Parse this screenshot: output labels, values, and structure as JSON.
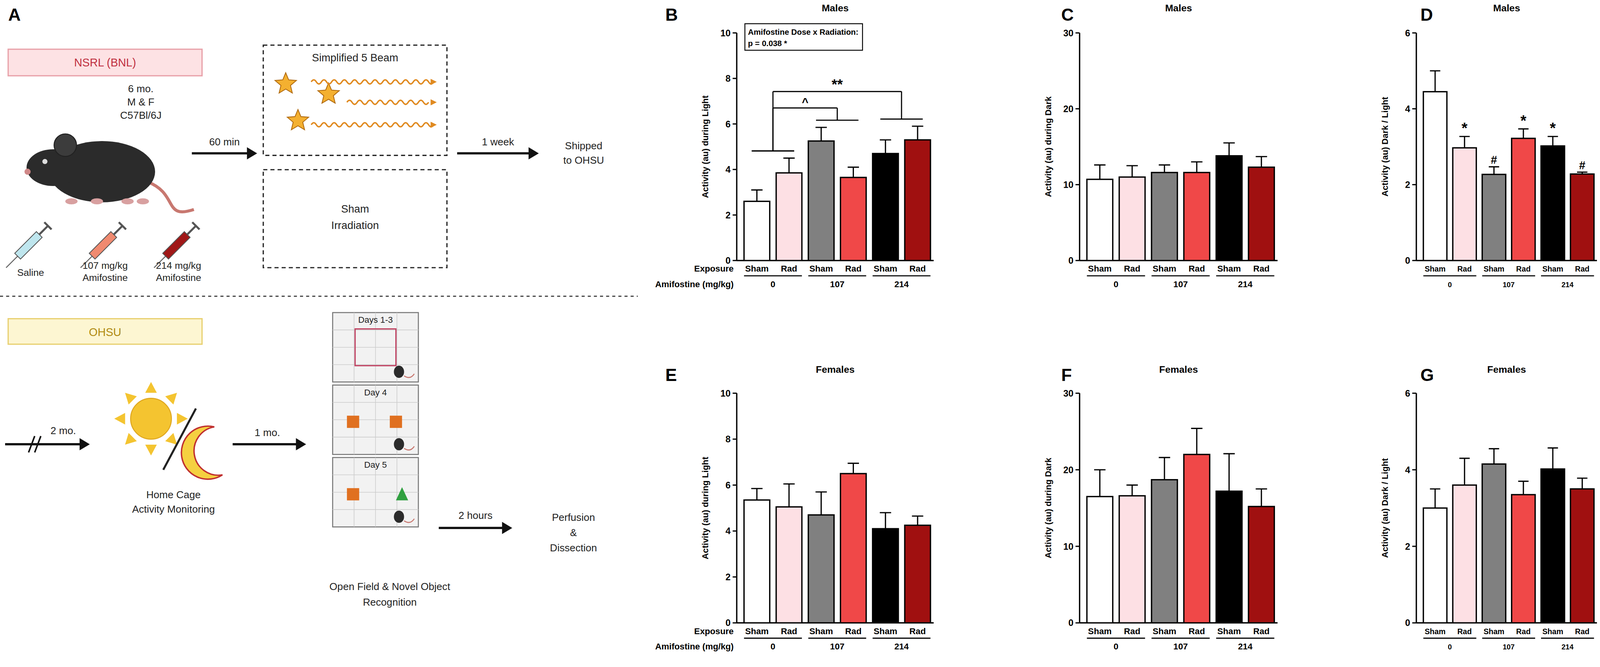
{
  "panel_labels": [
    "A",
    "B",
    "C",
    "D",
    "E",
    "F",
    "G"
  ],
  "diagram": {
    "site1": "NSRL (BNL)",
    "animal": [
      "6 mo.",
      "M & F",
      "C57Bl/6J"
    ],
    "injections": [
      [
        "Saline"
      ],
      [
        "107 mg/kg",
        "Amifostine"
      ],
      [
        "214 mg/kg",
        "Amifostine"
      ]
    ],
    "step1": "60 min",
    "exposures": [
      [
        "Simplified 5 Beam"
      ],
      [
        "Sham",
        "Irradiation"
      ]
    ],
    "step2": "1 week",
    "ship": [
      "Shipped",
      "to OHSU"
    ],
    "site2": "OHSU",
    "step3": "2 mo.",
    "monitoring": [
      "Home Cage",
      "Activity Monitoring"
    ],
    "step4": "1 mo.",
    "days": [
      "Days 1-3",
      "Day 4",
      "Day 5"
    ],
    "tests": [
      "Open Field & Novel Object",
      "Recognition"
    ],
    "step5": "2 hours",
    "end": [
      "Perfusion",
      "&",
      "Dissection"
    ]
  },
  "chart_data": [
    {
      "type": "bar",
      "title": "Males",
      "y_label": "Activity (au) during Light",
      "x_label": "Exposure",
      "group_title": "Amifostine (mg/kg)",
      "categories": [
        "Sham",
        "Rad",
        "Sham",
        "Rad",
        "Sham",
        "Rad"
      ],
      "groups": [
        "0",
        "107",
        "214"
      ],
      "values": [
        2.6,
        3.85,
        5.25,
        3.65,
        4.7,
        5.3
      ],
      "errors": [
        0.5,
        0.65,
        0.6,
        0.45,
        0.6,
        0.6
      ],
      "colors": [
        "#ffffff",
        "#fde0e4",
        "#808080",
        "#f04848",
        "#000000",
        "#a01010"
      ],
      "ylim": [
        0,
        10
      ],
      "yticks": [
        0,
        2,
        4,
        6,
        8,
        10
      ],
      "interaction_note": [
        "Amifostine Dose x Radiation:",
        "p = 0.038 *"
      ],
      "comparisons": [
        {
          "text": "^",
          "groups": [
            "0",
            "107"
          ]
        },
        {
          "text": "**",
          "groups": [
            "0",
            "214"
          ]
        }
      ]
    },
    {
      "type": "bar",
      "title": "Males",
      "y_label": "Activity (au) during Dark",
      "categories": [
        "Sham",
        "Rad",
        "Sham",
        "Rad",
        "Sham",
        "Rad"
      ],
      "groups": [
        "0",
        "107",
        "214"
      ],
      "values": [
        10.7,
        11.0,
        11.6,
        11.6,
        13.8,
        12.3
      ],
      "errors": [
        1.9,
        1.5,
        1.0,
        1.4,
        1.7,
        1.4
      ],
      "colors": [
        "#ffffff",
        "#fde0e4",
        "#808080",
        "#f04848",
        "#000000",
        "#a01010"
      ],
      "ylim": [
        0,
        30
      ],
      "yticks": [
        0,
        10,
        20,
        30
      ]
    },
    {
      "type": "bar",
      "title": "Males",
      "y_label": "Activity (au) Dark / Light",
      "categories": [
        "Sham",
        "Rad",
        "Sham",
        "Rad",
        "Sham",
        "Rad"
      ],
      "groups": [
        "0",
        "107",
        "214"
      ],
      "values": [
        4.45,
        2.97,
        2.27,
        3.22,
        3.02,
        2.28
      ],
      "errors": [
        0.55,
        0.3,
        0.2,
        0.25,
        0.25,
        0.05
      ],
      "colors": [
        "#ffffff",
        "#fde0e4",
        "#808080",
        "#f04848",
        "#000000",
        "#a01010"
      ],
      "ylim": [
        0,
        6
      ],
      "yticks": [
        0,
        2,
        4,
        6
      ],
      "bar_annotations": [
        null,
        "*",
        "#",
        "*",
        "*",
        "#"
      ]
    },
    {
      "type": "bar",
      "title": "Females",
      "y_label": "Activity (au) during Light",
      "x_label": "Exposure",
      "group_title": "Amifostine (mg/kg)",
      "categories": [
        "Sham",
        "Rad",
        "Sham",
        "Rad",
        "Sham",
        "Rad"
      ],
      "groups": [
        "0",
        "107",
        "214"
      ],
      "values": [
        5.35,
        5.05,
        4.7,
        6.5,
        4.1,
        4.25
      ],
      "errors": [
        0.5,
        1.0,
        1.0,
        0.45,
        0.7,
        0.4
      ],
      "colors": [
        "#ffffff",
        "#fde0e4",
        "#808080",
        "#f04848",
        "#000000",
        "#a01010"
      ],
      "ylim": [
        0,
        10
      ],
      "yticks": [
        0,
        2,
        4,
        6,
        8,
        10
      ]
    },
    {
      "type": "bar",
      "title": "Females",
      "y_label": "Activity (au) during Dark",
      "categories": [
        "Sham",
        "Rad",
        "Sham",
        "Rad",
        "Sham",
        "Rad"
      ],
      "groups": [
        "0",
        "107",
        "214"
      ],
      "values": [
        16.5,
        16.6,
        18.7,
        22.0,
        17.2,
        15.2
      ],
      "errors": [
        3.5,
        1.4,
        2.9,
        3.4,
        4.9,
        2.3
      ],
      "colors": [
        "#ffffff",
        "#fde0e4",
        "#808080",
        "#f04848",
        "#000000",
        "#a01010"
      ],
      "ylim": [
        0,
        30
      ],
      "yticks": [
        0,
        10,
        20,
        30
      ]
    },
    {
      "type": "bar",
      "title": "Females",
      "y_label": "Activity (au) Dark / Light",
      "categories": [
        "Sham",
        "Rad",
        "Sham",
        "Rad",
        "Sham",
        "Rad"
      ],
      "groups": [
        "0",
        "107",
        "214"
      ],
      "values": [
        3.0,
        3.6,
        4.15,
        3.35,
        4.02,
        3.5
      ],
      "errors": [
        0.5,
        0.7,
        0.4,
        0.35,
        0.55,
        0.28
      ],
      "colors": [
        "#ffffff",
        "#fde0e4",
        "#808080",
        "#f04848",
        "#000000",
        "#a01010"
      ],
      "ylim": [
        0,
        6
      ],
      "yticks": [
        0,
        2,
        4,
        6
      ]
    }
  ]
}
